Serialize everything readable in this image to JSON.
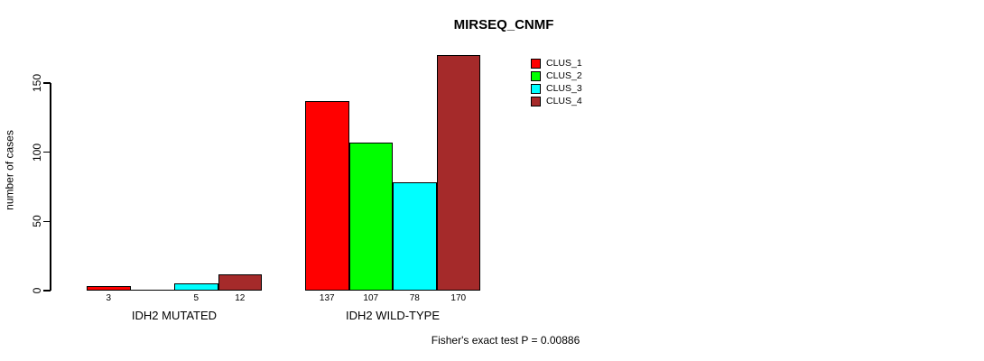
{
  "chart_data": {
    "type": "bar",
    "title": "MIRSEQ_CNMF",
    "ylabel": "number of cases",
    "xlabel": "",
    "ylim": [
      0,
      175
    ],
    "yticks": [
      0,
      50,
      100,
      150
    ],
    "categories": [
      "IDH2 MUTATED",
      "IDH2 WILD-TYPE"
    ],
    "series": [
      {
        "name": "CLUS_1",
        "color": "#FF0000",
        "values": [
          3,
          137
        ]
      },
      {
        "name": "CLUS_2",
        "color": "#00FF00",
        "values": [
          0,
          107
        ]
      },
      {
        "name": "CLUS_3",
        "color": "#00FFFF",
        "values": [
          5,
          78
        ]
      },
      {
        "name": "CLUS_4",
        "color": "#A52A2A",
        "values": [
          12,
          170
        ]
      }
    ],
    "value_labels": {
      "shown": true,
      "hide_zero": true
    },
    "legend": {
      "position": "top-right",
      "entries": [
        "CLUS_1",
        "CLUS_2",
        "CLUS_3",
        "CLUS_4"
      ]
    },
    "annotation": "Fisher's exact test P = 0.00886",
    "grid": false,
    "background": "#FFFFFF",
    "text_color": "#000000"
  }
}
